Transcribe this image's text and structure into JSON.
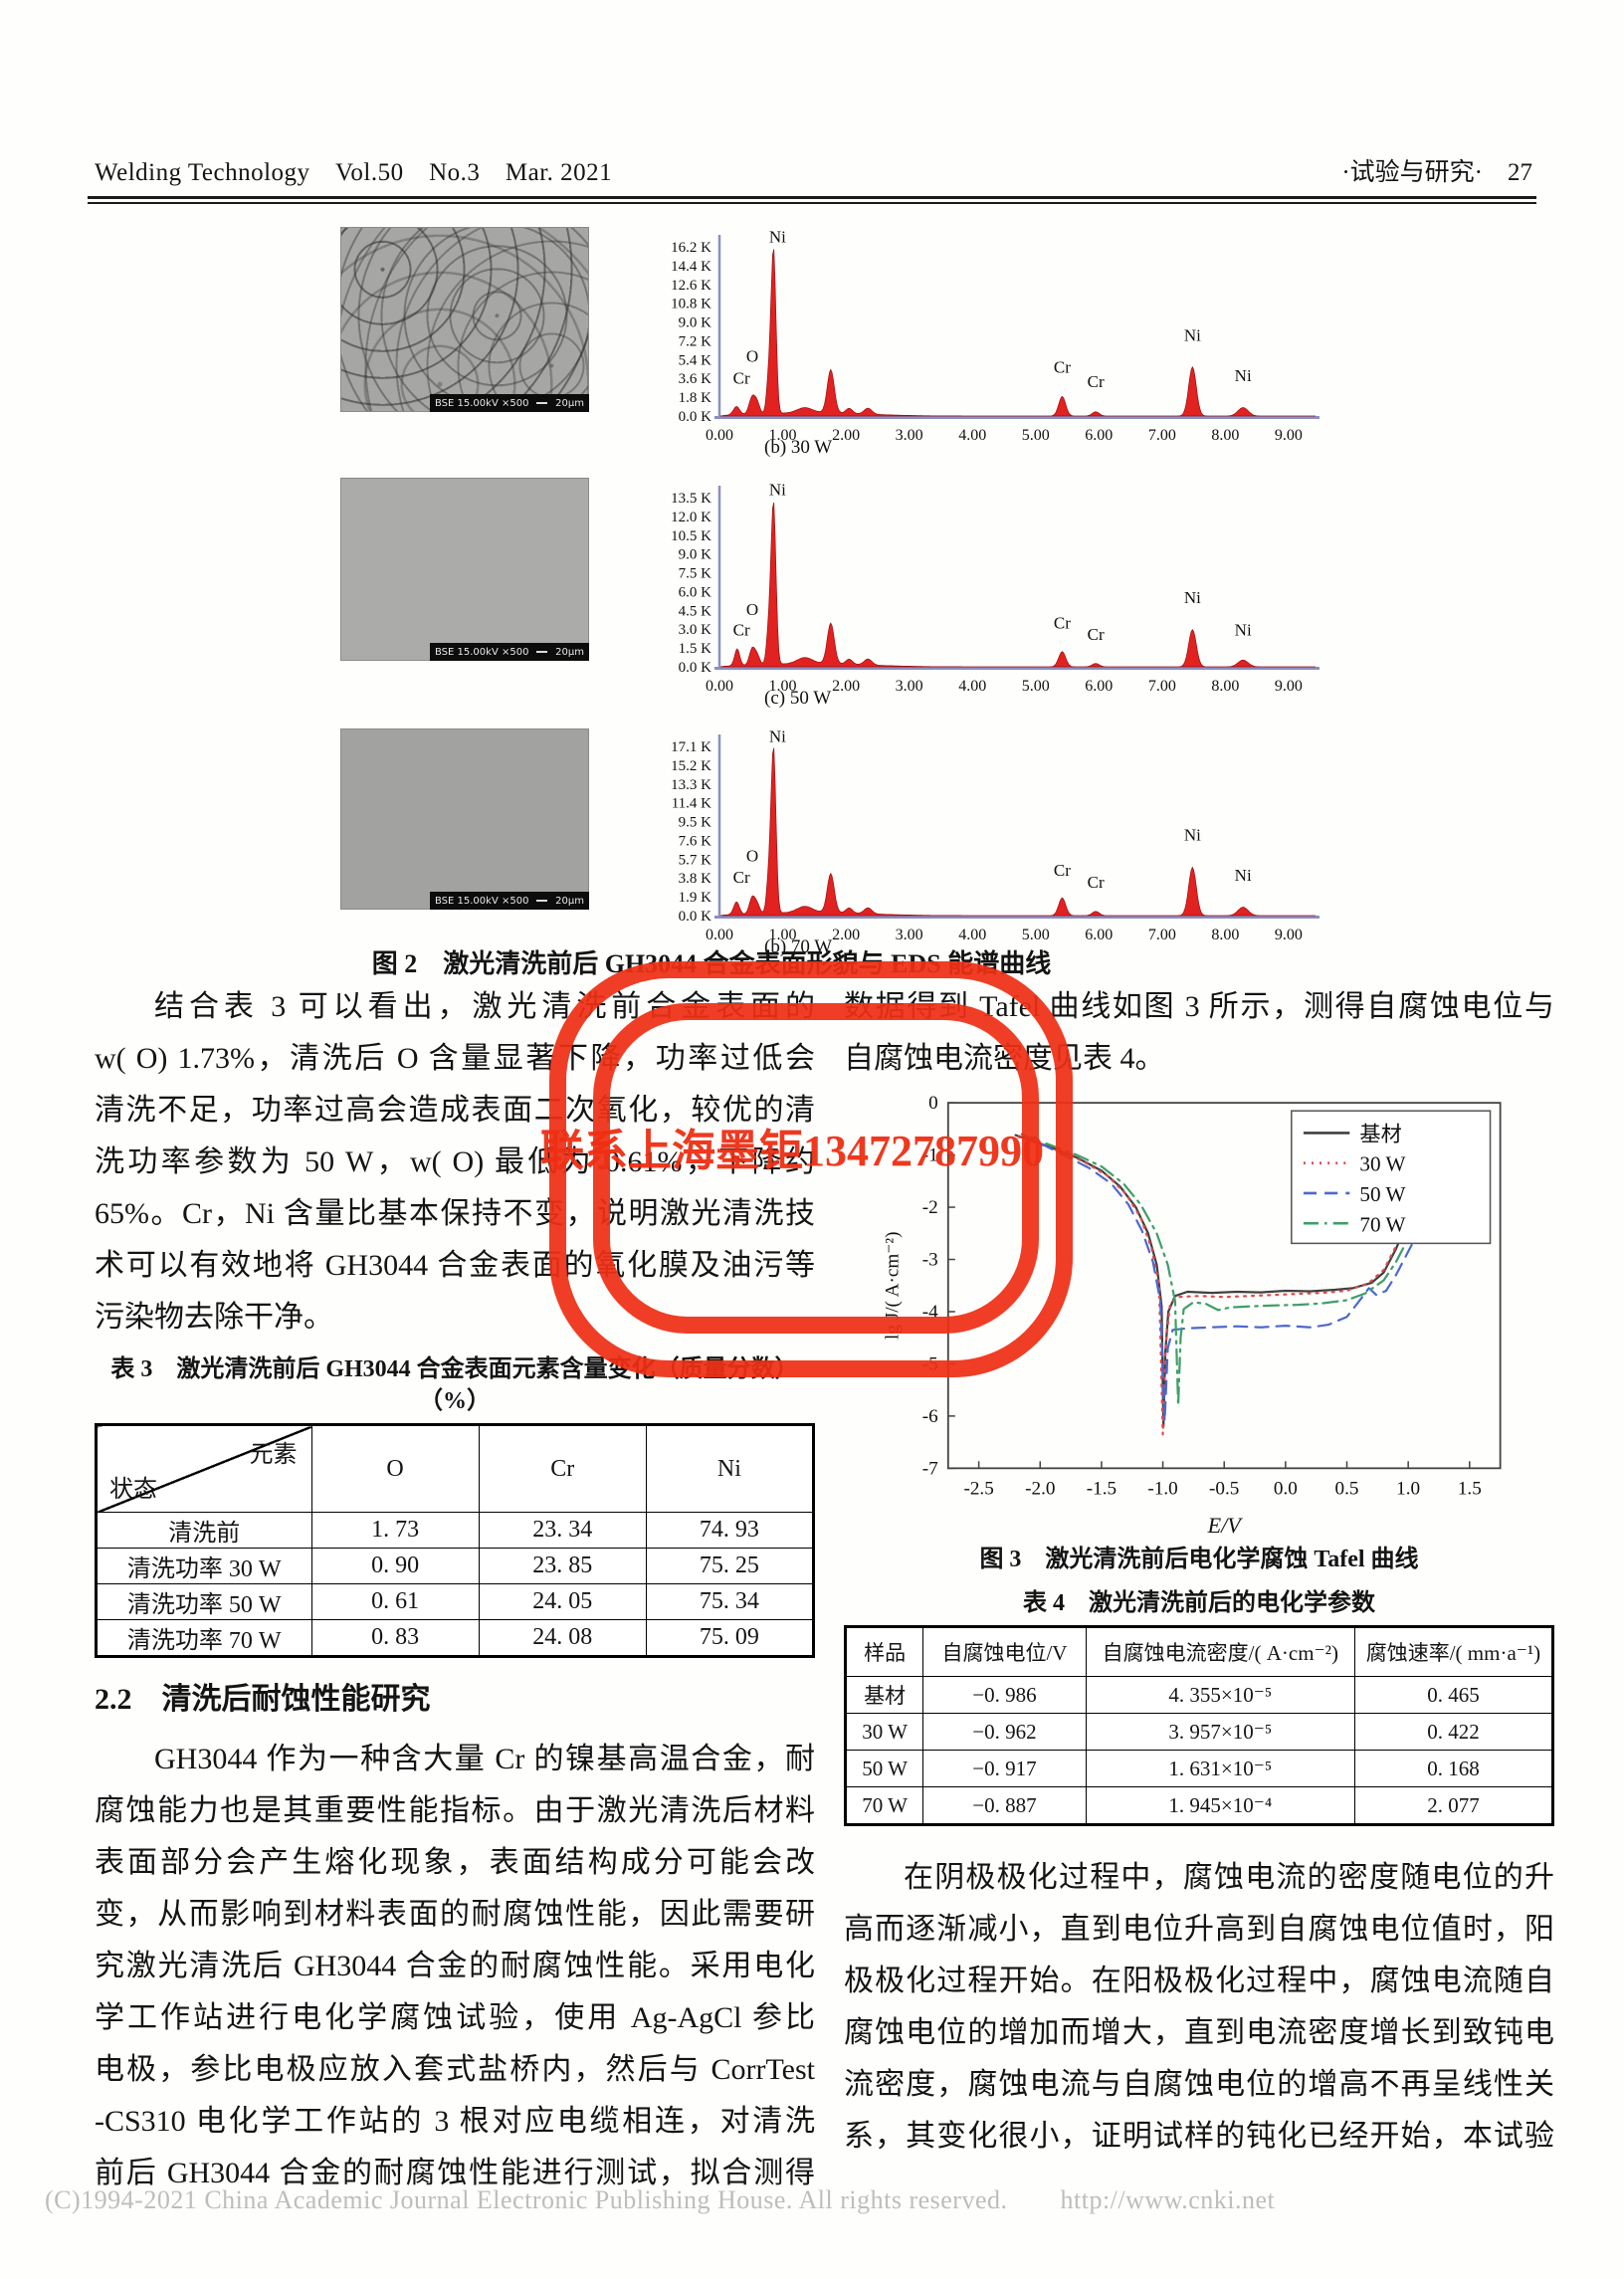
{
  "header": {
    "left": "Welding Technology　Vol.50　No.3　Mar. 2021",
    "right": "·试验与研究·　27"
  },
  "stamp": {
    "text": "联系上海墨钜13472787990",
    "color": "#ee2f14"
  },
  "footer": {
    "text": "(C)1994-2021 China Academic Journal Electronic Publishing House. All rights reserved.　　http://www.cnki.net"
  },
  "sections": {
    "heading22": "2.2　清洗后耐蚀性能研究"
  },
  "figure2": {
    "caption": "图 2　激光清洗前后 GH3044 合金表面形貌与 EDS 能谱曲线",
    "sem_bar_left": "BSE   15.00kV   ×500",
    "sem_bar_right": "20μm"
  },
  "figure3": {
    "caption": "图 3　激光清洗前后电化学腐蚀 Tafel 曲线"
  },
  "paragraphs": {
    "left1": {
      "indent": true,
      "short_last": true,
      "lines": [
        "结合表 3 可以看出，激光清洗前合金表面的",
        "w( O) 1.73%，清洗后 O 含量显著下降，功率过低会",
        "清洗不足，功率过高会造成表面二次氧化，较优的清",
        "洗功率参数为 50 W，w( O) 最低为 0.61%，下降约",
        "65%。Cr，Ni 含量比基本保持不变，说明激光清洗技",
        "术可以有效地将 GH3044 合金表面的氧化膜及油污等",
        "污染物去除干净。"
      ]
    },
    "left2": {
      "indent": true,
      "short_last": false,
      "lines": [
        "GH3044 作为一种含大量 Cr 的镍基高温合金，耐",
        "腐蚀能力也是其重要性能指标。由于激光清洗后材料",
        "表面部分会产生熔化现象，表面结构成分可能会改",
        "变，从而影响到材料表面的耐腐蚀性能，因此需要研",
        "究激光清洗后 GH3044 合金的耐腐蚀性能。采用电化",
        "学工作站进行电化学腐蚀试验，使用 Ag-AgCl 参比",
        "电极，参比电极应放入套式盐桥内，然后与 CorrTest",
        "-CS310 电化学工作站的 3 根对应电缆相连，对清洗",
        "前后 GH3044 合金的耐腐蚀性能进行测试，拟合测得"
      ]
    },
    "right1": {
      "indent": false,
      "short_last": true,
      "lines": [
        "数据得到 Tafel 曲线如图 3 所示，测得自腐蚀电位与",
        "自腐蚀电流密度见表 4。"
      ]
    },
    "right2": {
      "indent": true,
      "short_last": false,
      "lines": [
        "在阴极极化过程中，腐蚀电流的密度随电位的升",
        "高而逐渐减小，直到电位升高到自腐蚀电位值时，阳",
        "极极化过程开始。在阳极极化过程中，腐蚀电流随自",
        "腐蚀电位的增加而增大，直到电流密度增长到致钝电",
        "流密度，腐蚀电流与自腐蚀电位的增高不再呈线性关",
        "系，其变化很小，证明试样的钝化已经开始，本试验"
      ]
    }
  },
  "tables": {
    "t3": {
      "title": "表 3　激光清洗前后 GH3044 合金表面元素含量变化（质量分数）（%）",
      "corner_top": "元素",
      "corner_bottom": "状态",
      "columns": [
        "O",
        "Cr",
        "Ni"
      ],
      "rows": [
        [
          "清洗前",
          "1. 73",
          "23. 34",
          "74. 93"
        ],
        [
          "清洗功率 30 W",
          "0. 90",
          "23. 85",
          "75. 25"
        ],
        [
          "清洗功率 50 W",
          "0. 61",
          "24. 05",
          "75. 34"
        ],
        [
          "清洗功率 70 W",
          "0. 83",
          "24. 08",
          "75. 09"
        ]
      ]
    },
    "t4": {
      "title": "表 4　激光清洗前后的电化学参数",
      "columns": [
        "样品",
        "自腐蚀电位/V",
        "自腐蚀电流密度/( A·cm⁻²)",
        "腐蚀速率/( mm·a⁻¹)"
      ],
      "rows": [
        [
          "基材",
          "−0. 986",
          "4. 355×10⁻⁵",
          "0. 465"
        ],
        [
          "30 W",
          "−0. 962",
          "3. 957×10⁻⁵",
          "0. 422"
        ],
        [
          "50 W",
          "−0. 917",
          "1. 631×10⁻⁵",
          "0. 168"
        ],
        [
          "70 W",
          "−0. 887",
          "1. 945×10⁻⁴",
          "2. 077"
        ]
      ]
    }
  },
  "chart_data": {
    "eds": [
      {
        "type": "area",
        "sub": "(b) 30 W",
        "yticks": [
          "16.2 K",
          "14.4 K",
          "12.6 K",
          "10.8 K",
          "9.0 K",
          "7.2 K",
          "5.4 K",
          "3.6 K",
          "1.8 K",
          "0.0 K"
        ],
        "xticks": [
          "0.00",
          "1.00",
          "2.00",
          "3.00",
          "4.00",
          "5.00",
          "6.00",
          "7.00",
          "8.00",
          "9.00"
        ],
        "peaks": [
          {
            "k": 0.27,
            "h": 0.05,
            "s": 0.05
          },
          {
            "k": 0.52,
            "h": 0.105,
            "s": 0.05,
            "label": "O",
            "ly": 0.285
          },
          {
            "k": 0.6,
            "h": 0.055,
            "s": 0.04,
            "label": "Cr",
            "ly": 0.155,
            "lx": -16
          },
          {
            "k": 0.78,
            "h": 0.2,
            "s": 0.035
          },
          {
            "k": 0.855,
            "h": 0.965,
            "s": 0.038,
            "label": "Ni",
            "ly": 0.99,
            "lx": 4
          },
          {
            "k": 1.35,
            "h": 0.03,
            "s": 0.12
          },
          {
            "k": 1.76,
            "h": 0.255,
            "s": 0.055
          },
          {
            "k": 2.05,
            "h": 0.03,
            "s": 0.05
          },
          {
            "k": 2.35,
            "h": 0.035,
            "s": 0.06
          },
          {
            "k": 1.5,
            "h": 0.02,
            "s": 0.8
          },
          {
            "k": 5.42,
            "h": 0.115,
            "s": 0.055,
            "label": "Cr",
            "ly": 0.22
          },
          {
            "k": 5.95,
            "h": 0.025,
            "s": 0.055,
            "label": "Cr",
            "ly": 0.135
          },
          {
            "k": 7.48,
            "h": 0.29,
            "s": 0.06,
            "label": "Ni",
            "ly": 0.41
          },
          {
            "k": 8.28,
            "h": 0.05,
            "s": 0.08,
            "label": "Ni",
            "ly": 0.17
          }
        ]
      },
      {
        "type": "area",
        "sub": "(c) 50 W",
        "yticks": [
          "13.5 K",
          "12.0 K",
          "10.5 K",
          "9.0 K",
          "7.5 K",
          "6.0 K",
          "4.5 K",
          "3.0 K",
          "1.5 K",
          "0.0 K"
        ],
        "xticks": [
          "0.00",
          "1.00",
          "2.00",
          "3.00",
          "4.00",
          "5.00",
          "6.00",
          "7.00",
          "8.00",
          "9.00"
        ],
        "peaks": [
          {
            "k": 0.28,
            "h": 0.1,
            "s": 0.04
          },
          {
            "k": 0.52,
            "h": 0.1,
            "s": 0.045,
            "label": "O",
            "ly": 0.27
          },
          {
            "k": 0.6,
            "h": 0.05,
            "s": 0.04,
            "label": "Cr",
            "ly": 0.15,
            "lx": -16
          },
          {
            "k": 0.78,
            "h": 0.2,
            "s": 0.035
          },
          {
            "k": 0.855,
            "h": 0.95,
            "s": 0.038,
            "label": "Ni",
            "ly": 0.98,
            "lx": 4
          },
          {
            "k": 1.35,
            "h": 0.035,
            "s": 0.12
          },
          {
            "k": 1.76,
            "h": 0.24,
            "s": 0.055
          },
          {
            "k": 2.05,
            "h": 0.03,
            "s": 0.05
          },
          {
            "k": 2.35,
            "h": 0.035,
            "s": 0.06
          },
          {
            "k": 1.5,
            "h": 0.02,
            "s": 0.8
          },
          {
            "k": 5.42,
            "h": 0.09,
            "s": 0.055,
            "label": "Cr",
            "ly": 0.19
          },
          {
            "k": 5.95,
            "h": 0.02,
            "s": 0.055,
            "label": "Cr",
            "ly": 0.125
          },
          {
            "k": 7.48,
            "h": 0.22,
            "s": 0.06,
            "label": "Ni",
            "ly": 0.34
          },
          {
            "k": 8.28,
            "h": 0.04,
            "s": 0.08,
            "label": "Ni",
            "ly": 0.15
          }
        ]
      },
      {
        "type": "area",
        "sub": "(b) 70 W",
        "yticks": [
          "17.1 K",
          "15.2 K",
          "13.3 K",
          "11.4 K",
          "9.5 K",
          "7.6 K",
          "5.7 K",
          "3.8 K",
          "1.9 K",
          "0.0 K"
        ],
        "xticks": [
          "0.00",
          "1.00",
          "2.00",
          "3.00",
          "4.00",
          "5.00",
          "6.00",
          "7.00",
          "8.00",
          "9.00"
        ],
        "peaks": [
          {
            "k": 0.27,
            "h": 0.075,
            "s": 0.045
          },
          {
            "k": 0.52,
            "h": 0.1,
            "s": 0.045,
            "label": "O",
            "ly": 0.285
          },
          {
            "k": 0.6,
            "h": 0.05,
            "s": 0.04,
            "label": "Cr",
            "ly": 0.16,
            "lx": -16
          },
          {
            "k": 0.78,
            "h": 0.2,
            "s": 0.035
          },
          {
            "k": 0.855,
            "h": 0.97,
            "s": 0.038,
            "label": "Ni",
            "ly": 0.99,
            "lx": 4
          },
          {
            "k": 1.35,
            "h": 0.035,
            "s": 0.12
          },
          {
            "k": 1.76,
            "h": 0.23,
            "s": 0.055
          },
          {
            "k": 2.05,
            "h": 0.03,
            "s": 0.05
          },
          {
            "k": 2.35,
            "h": 0.035,
            "s": 0.06
          },
          {
            "k": 1.5,
            "h": 0.02,
            "s": 0.8
          },
          {
            "k": 5.42,
            "h": 0.105,
            "s": 0.055,
            "label": "Cr",
            "ly": 0.2
          },
          {
            "k": 5.95,
            "h": 0.025,
            "s": 0.055,
            "label": "Cr",
            "ly": 0.13
          },
          {
            "k": 7.48,
            "h": 0.285,
            "s": 0.06,
            "label": "Ni",
            "ly": 0.41
          },
          {
            "k": 8.28,
            "h": 0.05,
            "s": 0.08,
            "label": "Ni",
            "ly": 0.17
          }
        ]
      }
    ],
    "tafel": {
      "type": "line",
      "xlabel": "E/V",
      "ylabel": "lg J/( A·cm⁻²)",
      "xlim": [
        -2.75,
        1.75
      ],
      "ylim": [
        -7,
        0
      ],
      "xticks": [
        "-2.5",
        "-2.0",
        "-1.5",
        "-1.0",
        "-0.5",
        "0.0",
        "0.5",
        "1.0",
        "1.5"
      ],
      "yticks": [
        "0",
        "-1",
        "-2",
        "-3",
        "-4",
        "-5",
        "-6",
        "-7"
      ],
      "legend_position": "top-right",
      "series": [
        {
          "name": "基材",
          "color": "#404040",
          "dash": "",
          "points": [
            [
              -2.2,
              -0.62
            ],
            [
              -1.95,
              -0.82
            ],
            [
              -1.7,
              -1.05
            ],
            [
              -1.5,
              -1.3
            ],
            [
              -1.35,
              -1.6
            ],
            [
              -1.22,
              -2.0
            ],
            [
              -1.12,
              -2.5
            ],
            [
              -1.05,
              -3.1
            ],
            [
              -1.01,
              -3.9
            ],
            [
              -0.995,
              -6.2
            ],
            [
              -0.98,
              -4.8
            ],
            [
              -0.955,
              -4.0
            ],
            [
              -0.9,
              -3.7
            ],
            [
              -0.8,
              -3.62
            ],
            [
              -0.6,
              -3.64
            ],
            [
              -0.4,
              -3.62
            ],
            [
              -0.2,
              -3.63
            ],
            [
              0.0,
              -3.6
            ],
            [
              0.2,
              -3.61
            ],
            [
              0.4,
              -3.58
            ],
            [
              0.55,
              -3.55
            ],
            [
              0.7,
              -3.45
            ],
            [
              0.8,
              -3.25
            ],
            [
              0.9,
              -2.8
            ],
            [
              0.98,
              -2.35
            ],
            [
              1.05,
              -2.15
            ],
            [
              1.12,
              -1.95
            ]
          ]
        },
        {
          "name": "30 W",
          "color": "#e04a4a",
          "dash": "2 6",
          "points": [
            [
              -2.18,
              -0.65
            ],
            [
              -1.9,
              -0.88
            ],
            [
              -1.65,
              -1.12
            ],
            [
              -1.45,
              -1.4
            ],
            [
              -1.3,
              -1.75
            ],
            [
              -1.18,
              -2.2
            ],
            [
              -1.09,
              -2.8
            ],
            [
              -1.03,
              -3.5
            ],
            [
              -1.0,
              -6.35
            ],
            [
              -0.975,
              -4.6
            ],
            [
              -0.94,
              -3.85
            ],
            [
              -0.88,
              -3.72
            ],
            [
              -0.7,
              -3.7
            ],
            [
              -0.5,
              -3.72
            ],
            [
              -0.3,
              -3.7
            ],
            [
              -0.1,
              -3.68
            ],
            [
              0.1,
              -3.66
            ],
            [
              0.3,
              -3.64
            ],
            [
              0.5,
              -3.6
            ],
            [
              0.68,
              -3.45
            ],
            [
              0.8,
              -3.2
            ],
            [
              0.9,
              -2.75
            ],
            [
              1.0,
              -2.3
            ],
            [
              1.1,
              -1.85
            ],
            [
              1.18,
              -1.55
            ],
            [
              1.25,
              -1.3
            ]
          ]
        },
        {
          "name": "50 W",
          "color": "#4d68cf",
          "dash": "13 8",
          "points": [
            [
              -2.15,
              -0.6
            ],
            [
              -1.85,
              -0.95
            ],
            [
              -1.6,
              -1.25
            ],
            [
              -1.42,
              -1.55
            ],
            [
              -1.28,
              -1.95
            ],
            [
              -1.17,
              -2.45
            ],
            [
              -1.08,
              -3.05
            ],
            [
              -1.02,
              -3.8
            ],
            [
              -0.985,
              -6.1
            ],
            [
              -0.96,
              -4.7
            ],
            [
              -0.92,
              -4.35
            ],
            [
              -0.8,
              -4.32
            ],
            [
              -0.6,
              -4.3
            ],
            [
              -0.4,
              -4.28
            ],
            [
              -0.2,
              -4.3
            ],
            [
              0.0,
              -4.27
            ],
            [
              0.2,
              -4.3
            ],
            [
              0.35,
              -4.25
            ],
            [
              0.5,
              -4.1
            ],
            [
              0.6,
              -3.8
            ],
            [
              0.68,
              -3.55
            ],
            [
              0.74,
              -3.68
            ],
            [
              0.82,
              -3.6
            ],
            [
              0.9,
              -3.3
            ],
            [
              1.0,
              -2.85
            ],
            [
              1.1,
              -2.4
            ],
            [
              1.2,
              -2.0
            ],
            [
              1.27,
              -1.7
            ]
          ]
        },
        {
          "name": "70 W",
          "color": "#3f9f68",
          "dash": "15 6 2.5 6",
          "points": [
            [
              -1.95,
              -0.78
            ],
            [
              -1.7,
              -1.0
            ],
            [
              -1.5,
              -1.22
            ],
            [
              -1.32,
              -1.55
            ],
            [
              -1.18,
              -1.95
            ],
            [
              -1.05,
              -2.5
            ],
            [
              -0.96,
              -3.1
            ],
            [
              -0.9,
              -3.8
            ],
            [
              -0.875,
              -5.8
            ],
            [
              -0.855,
              -4.5
            ],
            [
              -0.83,
              -3.95
            ],
            [
              -0.75,
              -3.82
            ],
            [
              -0.65,
              -3.85
            ],
            [
              -0.55,
              -3.97
            ],
            [
              -0.45,
              -3.92
            ],
            [
              -0.3,
              -3.9
            ],
            [
              -0.1,
              -3.88
            ],
            [
              0.1,
              -3.87
            ],
            [
              0.3,
              -3.84
            ],
            [
              0.5,
              -3.78
            ],
            [
              0.65,
              -3.65
            ],
            [
              0.8,
              -3.4
            ],
            [
              0.9,
              -3.05
            ],
            [
              1.0,
              -2.6
            ],
            [
              1.1,
              -2.2
            ],
            [
              1.2,
              -1.85
            ],
            [
              1.27,
              -1.65
            ]
          ]
        }
      ]
    }
  }
}
